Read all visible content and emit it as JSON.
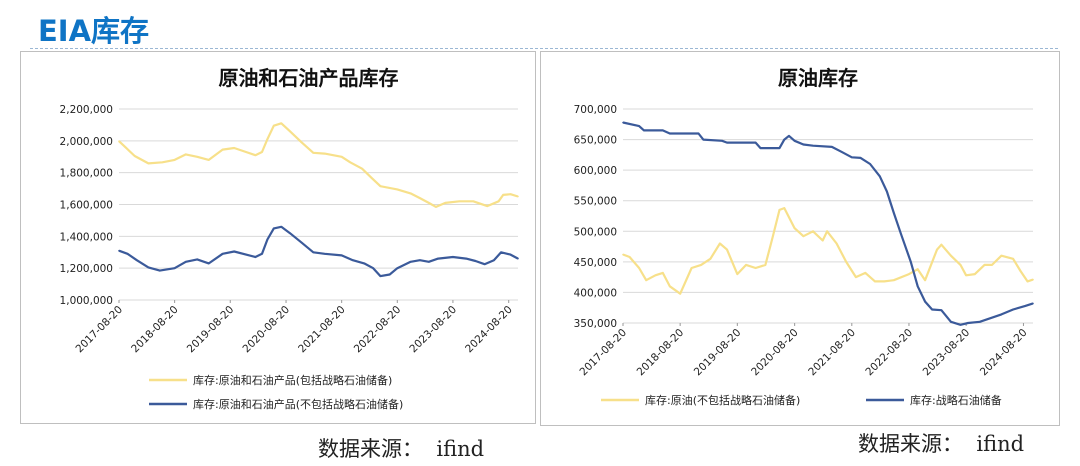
{
  "header": {
    "title": "EIA库存"
  },
  "colors": {
    "title_blue": "#0f74c5",
    "series_yellow": "#f7e08a",
    "series_blue": "#3b5a9a",
    "grid": "#d9d9d9"
  },
  "footer": {
    "source_left": "数据来源：  ifind",
    "source_right": "数据来源：  ifind"
  },
  "chart_data": [
    {
      "type": "line",
      "title": "原油和石油产品库存",
      "xlabel": "",
      "ylabel": "",
      "x_start": "2017-08-20",
      "x_end": "2024-10-20",
      "x_tick_labels": [
        "2017-08-20",
        "2018-08-20",
        "2019-08-20",
        "2020-08-20",
        "2021-08-20",
        "2022-08-20",
        "2023-08-20",
        "2024-08-20"
      ],
      "ylim": [
        1000000,
        2200000
      ],
      "y_tick_labels": [
        "1,000,000",
        "1,200,000",
        "1,400,000",
        "1,600,000",
        "1,800,000",
        "2,000,000",
        "2,200,000"
      ],
      "grid": true,
      "legend_position": "bottom",
      "series": [
        {
          "name": "库存:原油和石油产品(包括战略石油储备)",
          "color": "#f7e08a",
          "points": [
            [
              "2017-08-20",
              1998000
            ],
            [
              "2017-10-01",
              1960000
            ],
            [
              "2017-12-01",
              1905000
            ],
            [
              "2018-03-01",
              1858000
            ],
            [
              "2018-06-01",
              1865000
            ],
            [
              "2018-08-20",
              1880000
            ],
            [
              "2018-11-01",
              1915000
            ],
            [
              "2019-01-15",
              1900000
            ],
            [
              "2019-04-01",
              1880000
            ],
            [
              "2019-07-01",
              1945000
            ],
            [
              "2019-09-15",
              1955000
            ],
            [
              "2019-12-01",
              1930000
            ],
            [
              "2020-02-01",
              1910000
            ],
            [
              "2020-03-15",
              1930000
            ],
            [
              "2020-04-20",
              2010000
            ],
            [
              "2020-06-01",
              2095000
            ],
            [
              "2020-07-20",
              2110000
            ],
            [
              "2020-09-15",
              2060000
            ],
            [
              "2020-12-01",
              1990000
            ],
            [
              "2021-02-15",
              1925000
            ],
            [
              "2021-05-01",
              1920000
            ],
            [
              "2021-08-20",
              1900000
            ],
            [
              "2021-10-15",
              1865000
            ],
            [
              "2022-01-01",
              1825000
            ],
            [
              "2022-03-01",
              1770000
            ],
            [
              "2022-05-01",
              1715000
            ],
            [
              "2022-08-20",
              1695000
            ],
            [
              "2022-11-15",
              1670000
            ],
            [
              "2023-01-15",
              1640000
            ],
            [
              "2023-03-15",
              1610000
            ],
            [
              "2023-05-01",
              1585000
            ],
            [
              "2023-07-01",
              1610000
            ],
            [
              "2023-10-01",
              1620000
            ],
            [
              "2024-01-01",
              1620000
            ],
            [
              "2024-04-01",
              1590000
            ],
            [
              "2024-06-15",
              1620000
            ],
            [
              "2024-07-15",
              1660000
            ],
            [
              "2024-09-01",
              1665000
            ],
            [
              "2024-10-20",
              1650000
            ]
          ]
        },
        {
          "name": "库存:原油和石油产品(不包括战略石油储备)",
          "color": "#3b5a9a",
          "points": [
            [
              "2017-08-20",
              1310000
            ],
            [
              "2017-10-15",
              1290000
            ],
            [
              "2017-12-15",
              1250000
            ],
            [
              "2018-03-01",
              1205000
            ],
            [
              "2018-05-15",
              1185000
            ],
            [
              "2018-08-20",
              1200000
            ],
            [
              "2018-11-01",
              1240000
            ],
            [
              "2019-01-15",
              1255000
            ],
            [
              "2019-04-01",
              1230000
            ],
            [
              "2019-07-01",
              1290000
            ],
            [
              "2019-09-15",
              1305000
            ],
            [
              "2019-12-01",
              1285000
            ],
            [
              "2020-02-01",
              1270000
            ],
            [
              "2020-03-15",
              1290000
            ],
            [
              "2020-04-20",
              1380000
            ],
            [
              "2020-06-01",
              1450000
            ],
            [
              "2020-07-20",
              1460000
            ],
            [
              "2020-09-15",
              1420000
            ],
            [
              "2020-12-01",
              1360000
            ],
            [
              "2021-02-15",
              1300000
            ],
            [
              "2021-05-01",
              1290000
            ],
            [
              "2021-08-20",
              1280000
            ],
            [
              "2021-11-01",
              1250000
            ],
            [
              "2022-01-15",
              1230000
            ],
            [
              "2022-03-15",
              1200000
            ],
            [
              "2022-05-01",
              1150000
            ],
            [
              "2022-07-01",
              1160000
            ],
            [
              "2022-08-20",
              1200000
            ],
            [
              "2022-11-15",
              1240000
            ],
            [
              "2023-01-15",
              1250000
            ],
            [
              "2023-03-15",
              1240000
            ],
            [
              "2023-05-15",
              1260000
            ],
            [
              "2023-08-20",
              1270000
            ],
            [
              "2023-11-15",
              1260000
            ],
            [
              "2024-01-15",
              1245000
            ],
            [
              "2024-03-15",
              1225000
            ],
            [
              "2024-05-15",
              1250000
            ],
            [
              "2024-07-01",
              1300000
            ],
            [
              "2024-09-01",
              1285000
            ],
            [
              "2024-10-20",
              1260000
            ]
          ]
        }
      ]
    },
    {
      "type": "line",
      "title": "原油库存",
      "xlabel": "",
      "ylabel": "",
      "x_start": "2017-08-20",
      "x_end": "2024-10-20",
      "x_tick_labels": [
        "2017-08-20",
        "2018-08-20",
        "2019-08-20",
        "2020-08-20",
        "2021-08-20",
        "2022-08-20",
        "2023-08-20",
        "2024-08-20"
      ],
      "ylim": [
        350000,
        700000
      ],
      "y_tick_labels": [
        "350,000",
        "400,000",
        "450,000",
        "500,000",
        "550,000",
        "600,000",
        "650,000",
        "700,000"
      ],
      "grid": true,
      "legend_position": "bottom",
      "series": [
        {
          "name": "库存:原油(不包括战略石油储备)",
          "color": "#f7e08a",
          "points": [
            [
              "2017-08-20",
              462000
            ],
            [
              "2017-10-01",
              458000
            ],
            [
              "2017-12-01",
              440000
            ],
            [
              "2018-01-15",
              420000
            ],
            [
              "2018-03-15",
              428000
            ],
            [
              "2018-05-01",
              432000
            ],
            [
              "2018-06-15",
              410000
            ],
            [
              "2018-08-20",
              398000
            ],
            [
              "2018-11-01",
              440000
            ],
            [
              "2019-01-01",
              445000
            ],
            [
              "2019-03-01",
              455000
            ],
            [
              "2019-05-01",
              480000
            ],
            [
              "2019-06-15",
              470000
            ],
            [
              "2019-08-20",
              430000
            ],
            [
              "2019-10-15",
              445000
            ],
            [
              "2019-12-15",
              440000
            ],
            [
              "2020-02-15",
              445000
            ],
            [
              "2020-04-01",
              490000
            ],
            [
              "2020-05-15",
              535000
            ],
            [
              "2020-06-15",
              538000
            ],
            [
              "2020-08-20",
              505000
            ],
            [
              "2020-10-15",
              492000
            ],
            [
              "2020-12-15",
              500000
            ],
            [
              "2021-02-15",
              485000
            ],
            [
              "2021-03-15",
              500000
            ],
            [
              "2021-05-15",
              480000
            ],
            [
              "2021-07-15",
              450000
            ],
            [
              "2021-09-15",
              425000
            ],
            [
              "2021-11-15",
              432000
            ],
            [
              "2022-01-15",
              418000
            ],
            [
              "2022-03-15",
              418000
            ],
            [
              "2022-05-15",
              420000
            ],
            [
              "2022-08-20",
              430000
            ],
            [
              "2022-10-15",
              438000
            ],
            [
              "2022-12-01",
              420000
            ],
            [
              "2023-02-15",
              470000
            ],
            [
              "2023-03-15",
              478000
            ],
            [
              "2023-05-15",
              460000
            ],
            [
              "2023-07-15",
              445000
            ],
            [
              "2023-08-20",
              428000
            ],
            [
              "2023-10-15",
              430000
            ],
            [
              "2023-12-15",
              445000
            ],
            [
              "2024-02-01",
              445000
            ],
            [
              "2024-04-01",
              460000
            ],
            [
              "2024-06-15",
              455000
            ],
            [
              "2024-08-01",
              435000
            ],
            [
              "2024-09-15",
              418000
            ],
            [
              "2024-10-20",
              421000
            ]
          ]
        },
        {
          "name": "库存:战略石油储备",
          "color": "#3b5a9a",
          "points": [
            [
              "2017-08-20",
              678000
            ],
            [
              "2017-12-01",
              672000
            ],
            [
              "2018-01-01",
              665000
            ],
            [
              "2018-05-01",
              665000
            ],
            [
              "2018-06-15",
              660000
            ],
            [
              "2018-12-15",
              660000
            ],
            [
              "2019-01-15",
              650000
            ],
            [
              "2019-05-15",
              648000
            ],
            [
              "2019-06-15",
              645000
            ],
            [
              "2019-12-15",
              645000
            ],
            [
              "2020-01-15",
              636000
            ],
            [
              "2020-05-15",
              636000
            ],
            [
              "2020-06-15",
              650000
            ],
            [
              "2020-07-15",
              656000
            ],
            [
              "2020-08-20",
              648000
            ],
            [
              "2020-10-15",
              642000
            ],
            [
              "2020-12-15",
              640000
            ],
            [
              "2021-04-15",
              638000
            ],
            [
              "2021-06-15",
              630000
            ],
            [
              "2021-08-20",
              621000
            ],
            [
              "2021-10-15",
              620000
            ],
            [
              "2021-12-15",
              610000
            ],
            [
              "2022-02-15",
              590000
            ],
            [
              "2022-04-01",
              565000
            ],
            [
              "2022-05-15",
              530000
            ],
            [
              "2022-07-01",
              495000
            ],
            [
              "2022-09-01",
              450000
            ],
            [
              "2022-10-15",
              410000
            ],
            [
              "2022-12-01",
              385000
            ],
            [
              "2023-01-15",
              372000
            ],
            [
              "2023-03-15",
              371000
            ],
            [
              "2023-05-15",
              352000
            ],
            [
              "2023-07-15",
              347000
            ],
            [
              "2023-09-01",
              350000
            ],
            [
              "2023-11-15",
              352000
            ],
            [
              "2024-01-01",
              356000
            ],
            [
              "2024-04-01",
              364000
            ],
            [
              "2024-06-15",
              372000
            ],
            [
              "2024-09-01",
              378000
            ],
            [
              "2024-10-20",
              382000
            ]
          ]
        }
      ]
    }
  ]
}
